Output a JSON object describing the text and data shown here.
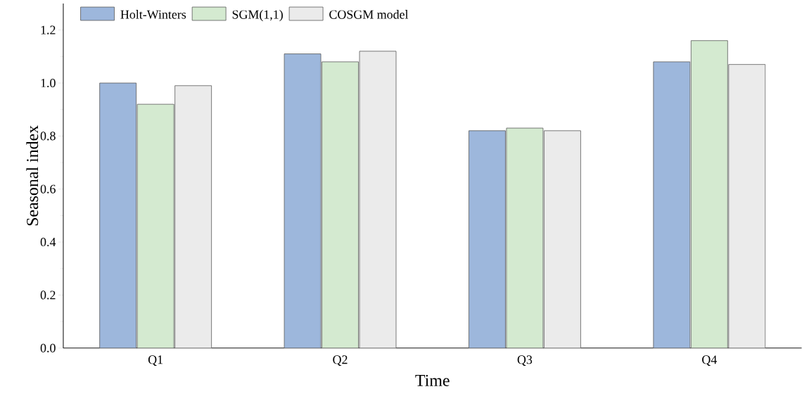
{
  "chart_data": {
    "type": "bar",
    "xlabel": "Time",
    "ylabel": "Seasonal index",
    "categories": [
      "Q1",
      "Q2",
      "Q3",
      "Q4"
    ],
    "series": [
      {
        "name": "Holt-Winters",
        "color": "#9db7dc",
        "values": [
          1.0,
          1.11,
          0.82,
          1.08
        ]
      },
      {
        "name": "SGM(1,1)",
        "color": "#d4ead0",
        "values": [
          0.92,
          1.08,
          0.83,
          1.16
        ]
      },
      {
        "name": "COSGM model",
        "color": "#ebebeb",
        "values": [
          0.99,
          1.12,
          0.82,
          1.07
        ]
      }
    ],
    "ylim": [
      0,
      1.3
    ],
    "yticks": [
      {
        "value": 0,
        "label": "0.0"
      },
      {
        "value": 0.2,
        "label": "0.2"
      },
      {
        "value": 0.4,
        "label": "0.4"
      },
      {
        "value": 0.6,
        "label": "0.6"
      },
      {
        "value": 0.8,
        "label": "0.8"
      },
      {
        "value": 1.0,
        "label": "1.0"
      },
      {
        "value": 1.2,
        "label": "1.2"
      }
    ],
    "legend": "top left"
  }
}
